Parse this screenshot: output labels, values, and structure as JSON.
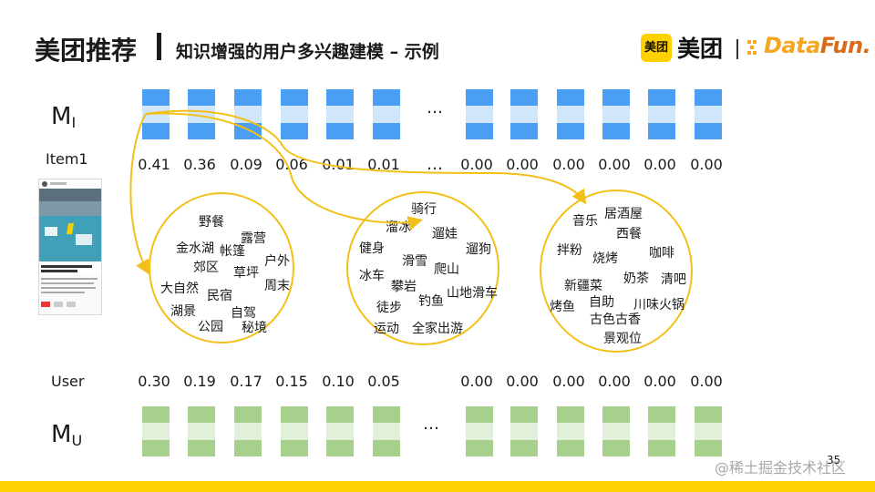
{
  "title": {
    "main": "美团推荐",
    "sub": "知识增强的用户多兴趣建模 – 示例"
  },
  "logo": {
    "badge": "美团",
    "brand": "美团",
    "datafun_data": "Data",
    "datafun_fun": "Fun."
  },
  "item_row": {
    "matrix_label": "M",
    "matrix_sub": "I",
    "row_label": "Item1",
    "ellipsis": "…",
    "weights": [
      "0.41",
      "0.36",
      "0.09",
      "0.06",
      "0.01",
      "0.01",
      "0.00",
      "0.00",
      "0.00",
      "0.00",
      "0.00",
      "0.00"
    ],
    "colors": {
      "dark": "#4a9ff5",
      "light": "#cfe6fb"
    }
  },
  "user_row": {
    "matrix_label": "M",
    "matrix_sub": "U",
    "row_label": "User",
    "ellipsis": "…",
    "weights": [
      "0.30",
      "0.19",
      "0.17",
      "0.15",
      "0.10",
      "0.05",
      "0.00",
      "0.00",
      "0.00",
      "0.00",
      "0.00",
      "0.00"
    ],
    "colors": {
      "dark": "#a8d08d",
      "light": "#e2efd9"
    }
  },
  "interest_clusters": [
    {
      "words": [
        "野餐",
        "露营",
        "金水湖",
        "帐篷",
        "户外",
        "郊区",
        "草坪",
        "大自然",
        "周末",
        "民宿",
        "湖景",
        "自驾",
        "公园",
        "秘境"
      ]
    },
    {
      "words": [
        "骑行",
        "溜冰",
        "遛娃",
        "健身",
        "滑雪",
        "遛狗",
        "冰车",
        "爬山",
        "攀岩",
        "徒步",
        "钓鱼",
        "山地滑车",
        "运动",
        "全家出游"
      ]
    },
    {
      "words": [
        "音乐",
        "居酒屋",
        "西餐",
        "拌粉",
        "烧烤",
        "咖啡",
        "奶茶",
        "新疆菜",
        "清吧",
        "烤鱼",
        "自助",
        "川味火锅",
        "古色古香",
        "景观位"
      ]
    }
  ],
  "accent_color": "#f2c018",
  "page_number": "35",
  "watermark": "@稀土掘金技术社区"
}
